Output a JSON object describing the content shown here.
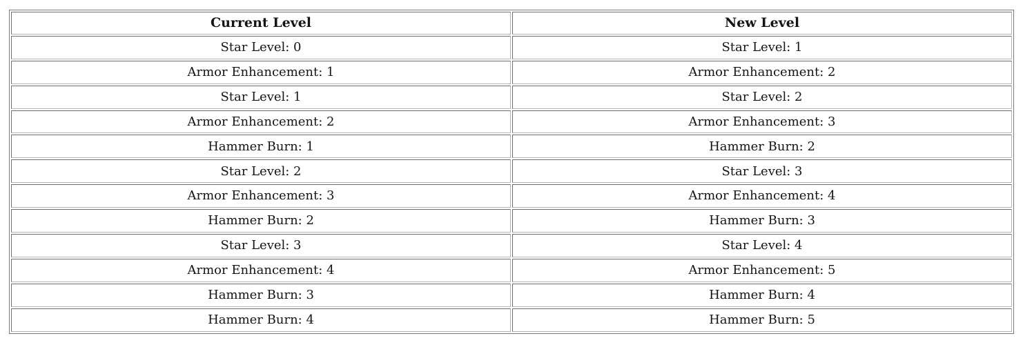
{
  "table": {
    "columns": [
      {
        "label": "Current Level"
      },
      {
        "label": "New Level"
      }
    ],
    "rows": [
      [
        "Star Level: 0",
        "Star Level: 1"
      ],
      [
        "Armor Enhancement: 1",
        "Armor Enhancement: 2"
      ],
      [
        "Star Level: 1",
        "Star Level: 2"
      ],
      [
        "Armor Enhancement: 2",
        "Armor Enhancement: 3"
      ],
      [
        "Hammer Burn: 1",
        "Hammer Burn: 2"
      ],
      [
        "Star Level: 2",
        "Star Level: 3"
      ],
      [
        "Armor Enhancement: 3",
        "Armor Enhancement: 4"
      ],
      [
        "Hammer Burn: 2",
        "Hammer Burn: 3"
      ],
      [
        "Star Level: 3",
        "Star Level: 4"
      ],
      [
        "Armor Enhancement: 4",
        "Armor Enhancement: 5"
      ],
      [
        "Hammer Burn: 3",
        "Hammer Burn: 4"
      ],
      [
        "Hammer Burn: 4",
        "Hammer Burn: 5"
      ]
    ]
  },
  "colors": {
    "background": "#ffffff",
    "text": "#141414",
    "border_dark": "#6b6b6b",
    "border_light": "#b2b2b2",
    "table_border": "#7a7a7a"
  }
}
